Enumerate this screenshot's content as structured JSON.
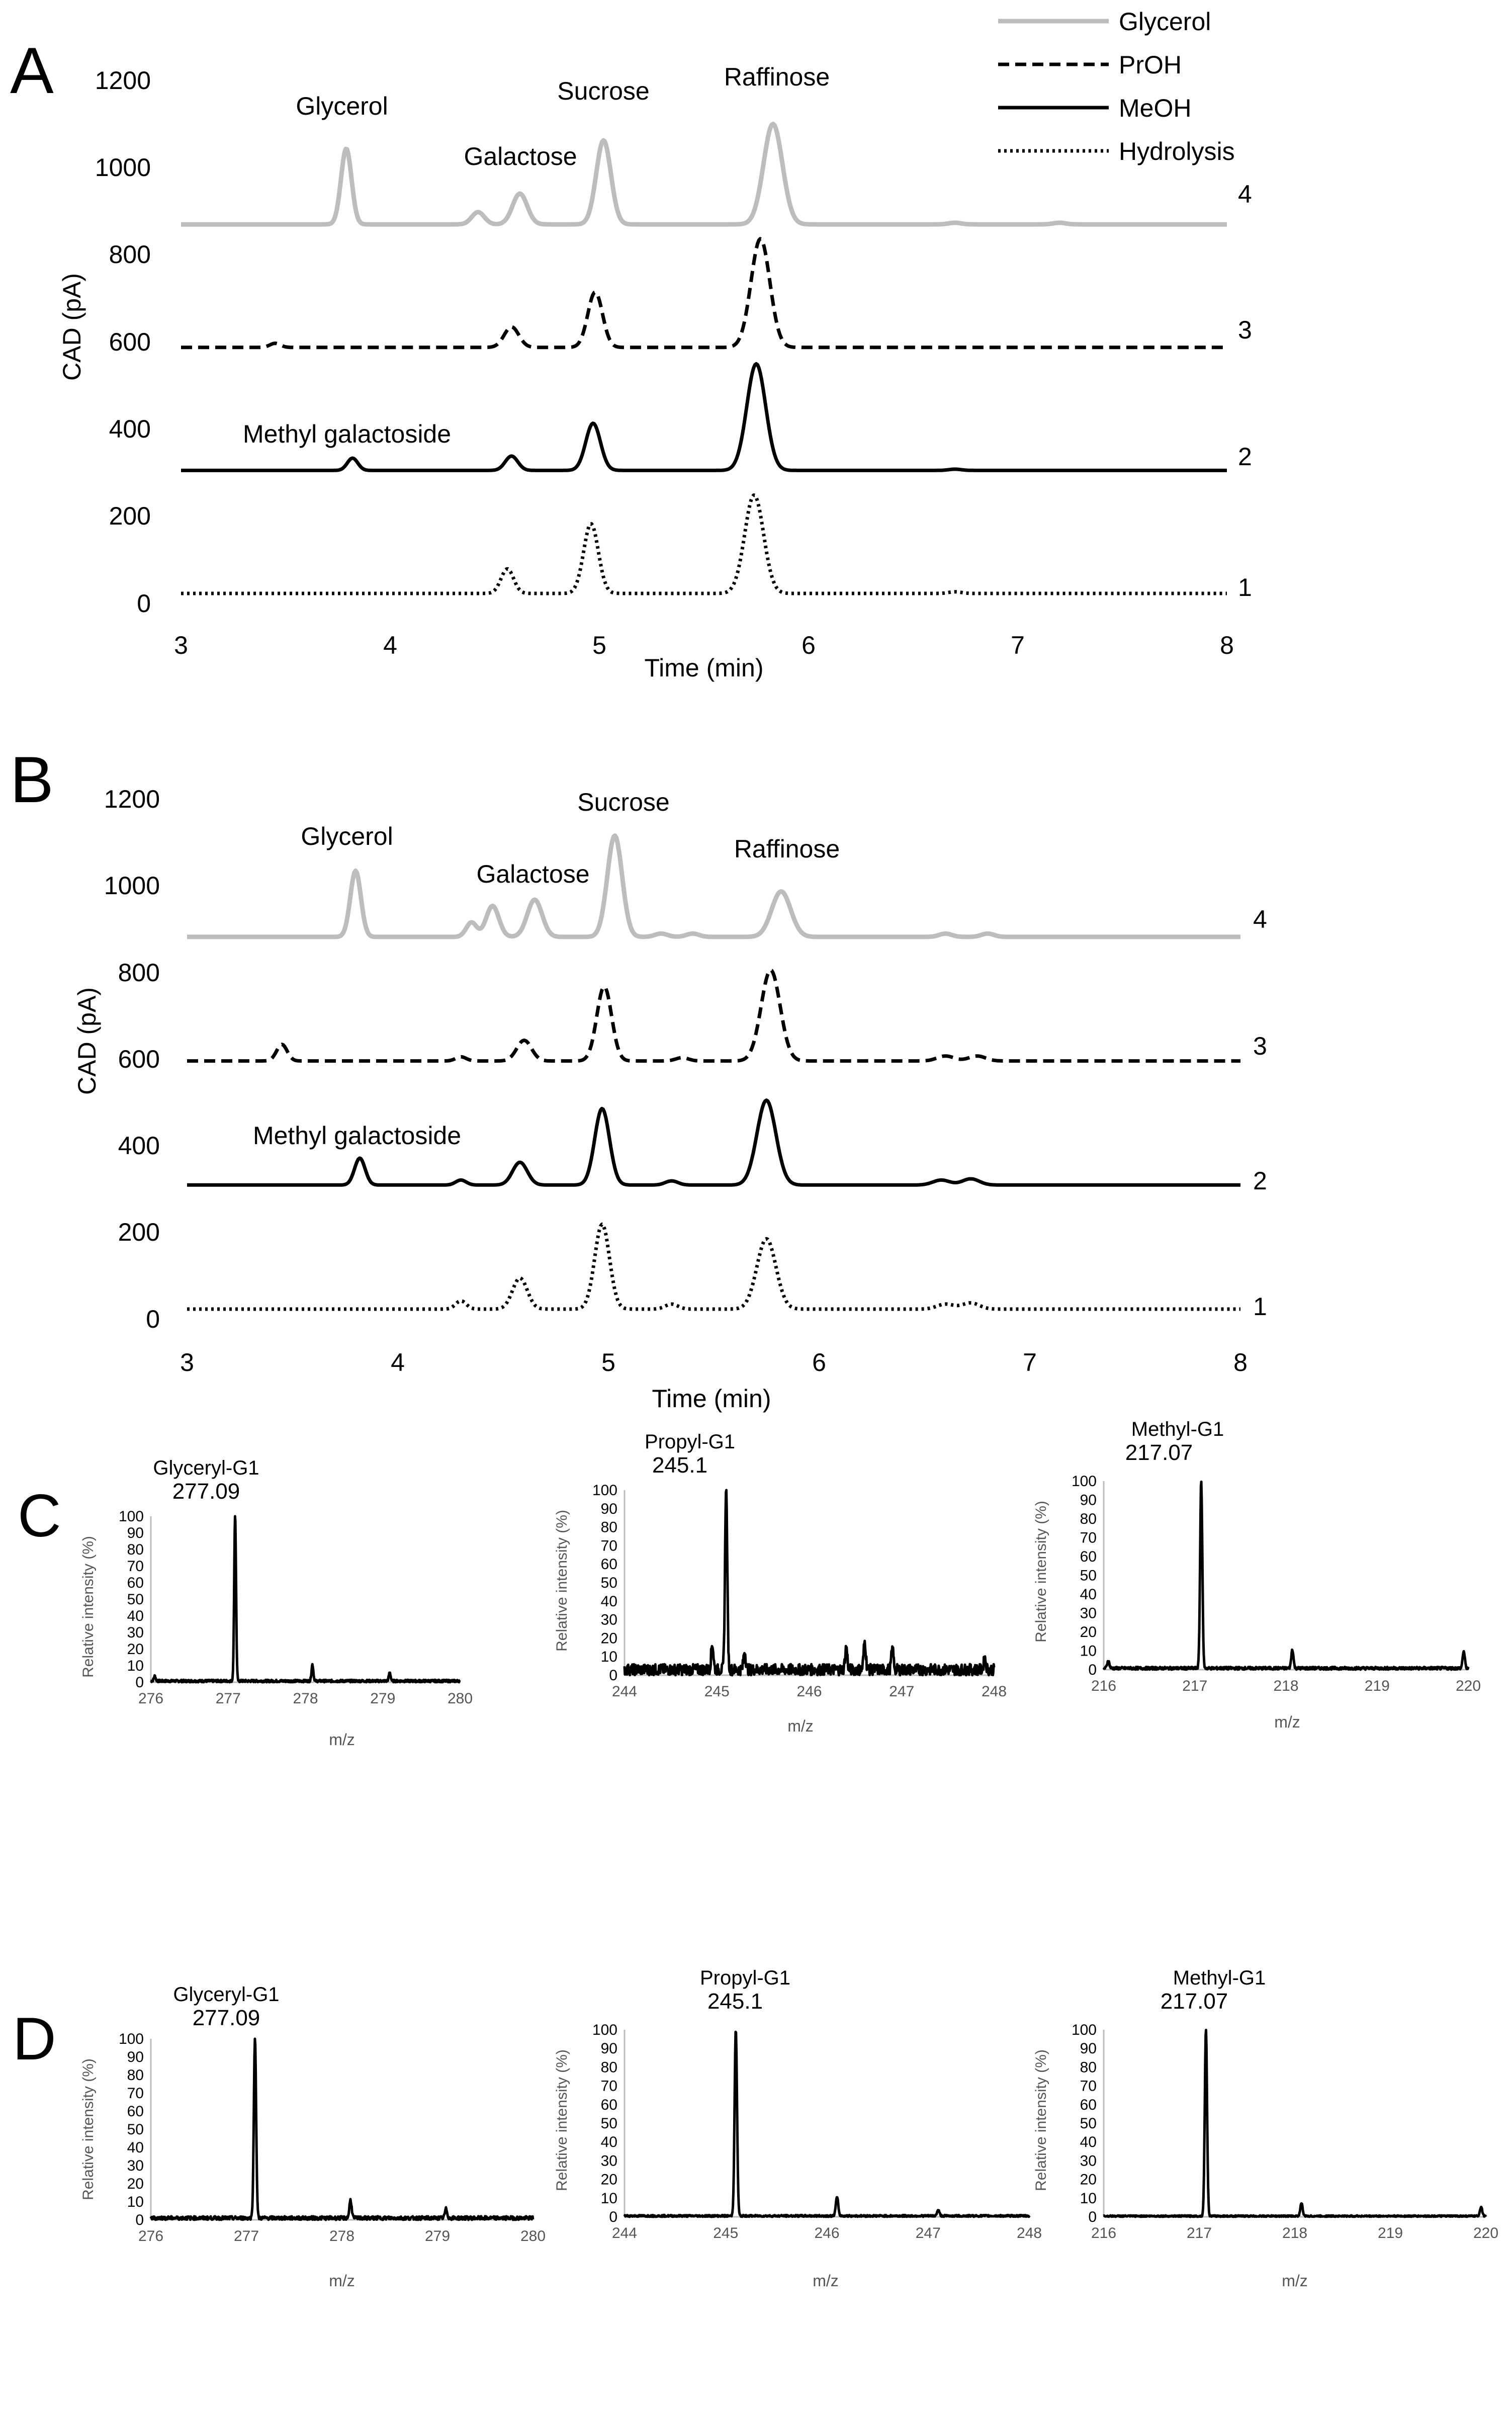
{
  "figure": {
    "panel_letters": [
      "A",
      "B",
      "C",
      "D"
    ]
  },
  "chart_data": [
    {
      "id": "A",
      "type": "line",
      "title": "",
      "xlabel": "Time (min)",
      "ylabel": "CAD (pA)",
      "xlim": [
        3,
        8
      ],
      "ylim": [
        0,
        1300
      ],
      "xticks": [
        "3",
        "4",
        "5",
        "6",
        "7",
        "8"
      ],
      "yticks": [
        "0",
        "200",
        "400",
        "600",
        "800",
        "1000",
        "1200"
      ],
      "legend": [
        "Glycerol",
        "PrOH",
        "MeOH",
        "Hydrolysis"
      ],
      "legend_position": "top-right",
      "annotations": [
        "Glycerol",
        "Galactose",
        "Sucrose",
        "Raffinose",
        "Methyl galactoside"
      ],
      "trace_numbers": [
        "4",
        "3",
        "2",
        "1"
      ],
      "series": [
        {
          "name": "Glycerol",
          "trace_label": "4",
          "style": "solid",
          "color": "#bdbdbd",
          "baseline": 900,
          "peaks": [
            [
              3.79,
              185,
              0.025
            ],
            [
              4.42,
              30,
              0.03
            ],
            [
              4.62,
              75,
              0.035
            ],
            [
              5.02,
              205,
              0.035
            ],
            [
              5.83,
              245,
              0.045
            ],
            [
              6.7,
              4,
              0.03
            ],
            [
              7.2,
              4,
              0.03
            ]
          ]
        },
        {
          "name": "PrOH",
          "trace_label": "3",
          "style": "dashed",
          "color": "#000000",
          "baseline": 600,
          "peaks": [
            [
              3.45,
              10,
              0.025
            ],
            [
              4.58,
              50,
              0.035
            ],
            [
              4.98,
              135,
              0.035
            ],
            [
              5.77,
              265,
              0.045
            ]
          ]
        },
        {
          "name": "MeOH",
          "trace_label": "2",
          "style": "solid",
          "color": "#000000",
          "baseline": 300,
          "peaks": [
            [
              3.82,
              30,
              0.025
            ],
            [
              4.58,
              35,
              0.03
            ],
            [
              4.97,
              115,
              0.035
            ],
            [
              5.75,
              260,
              0.045
            ],
            [
              6.7,
              3,
              0.03
            ]
          ]
        },
        {
          "name": "Hydrolysis",
          "trace_label": "1",
          "style": "dotted",
          "color": "#000000",
          "baseline": 0,
          "peaks": [
            [
              4.56,
              60,
              0.03
            ],
            [
              4.96,
              170,
              0.035
            ],
            [
              5.74,
              240,
              0.045
            ],
            [
              6.7,
              4,
              0.03
            ]
          ]
        }
      ]
    },
    {
      "id": "B",
      "type": "line",
      "title": "",
      "xlabel": "Time (min)",
      "ylabel": "CAD (pA)",
      "xlim": [
        3,
        8
      ],
      "ylim": [
        0,
        1300
      ],
      "xticks": [
        "3",
        "4",
        "5",
        "6",
        "7",
        "8"
      ],
      "yticks": [
        "0",
        "200",
        "400",
        "600",
        "800",
        "1000",
        "1200"
      ],
      "annotations": [
        "Glycerol",
        "Galactose",
        "Sucrose",
        "Raffinose",
        "Methyl galactoside"
      ],
      "trace_numbers": [
        "4",
        "3",
        "2",
        "1"
      ],
      "series": [
        {
          "name": "Glycerol",
          "trace_label": "4",
          "style": "solid",
          "color": "#bdbdbd",
          "baseline": 900,
          "peaks": [
            [
              3.8,
              160,
              0.025
            ],
            [
              4.35,
              35,
              0.025
            ],
            [
              4.45,
              75,
              0.03
            ],
            [
              4.65,
              90,
              0.035
            ],
            [
              5.03,
              245,
              0.035
            ],
            [
              5.25,
              8,
              0.03
            ],
            [
              5.4,
              8,
              0.03
            ],
            [
              5.82,
              110,
              0.045
            ],
            [
              6.6,
              8,
              0.03
            ],
            [
              6.8,
              8,
              0.03
            ]
          ]
        },
        {
          "name": "PrOH",
          "trace_label": "3",
          "style": "dashed",
          "color": "#000000",
          "baseline": 600,
          "peaks": [
            [
              3.45,
              40,
              0.025
            ],
            [
              4.3,
              10,
              0.025
            ],
            [
              4.6,
              50,
              0.035
            ],
            [
              4.98,
              180,
              0.035
            ],
            [
              5.35,
              8,
              0.03
            ],
            [
              5.77,
              220,
              0.045
            ],
            [
              6.6,
              12,
              0.04
            ],
            [
              6.75,
              12,
              0.04
            ]
          ]
        },
        {
          "name": "MeOH",
          "trace_label": "2",
          "style": "solid",
          "color": "#000000",
          "baseline": 300,
          "peaks": [
            [
              3.82,
              65,
              0.025
            ],
            [
              4.3,
              12,
              0.025
            ],
            [
              4.58,
              55,
              0.035
            ],
            [
              4.97,
              185,
              0.035
            ],
            [
              5.3,
              10,
              0.03
            ],
            [
              5.75,
              205,
              0.045
            ],
            [
              6.58,
              12,
              0.04
            ],
            [
              6.72,
              15,
              0.04
            ]
          ]
        },
        {
          "name": "Hydrolysis",
          "trace_label": "1",
          "style": "dotted",
          "color": "#000000",
          "baseline": 0,
          "peaks": [
            [
              4.3,
              20,
              0.025
            ],
            [
              4.58,
              75,
              0.035
            ],
            [
              4.97,
              205,
              0.035
            ],
            [
              5.3,
              12,
              0.03
            ],
            [
              5.75,
              170,
              0.045
            ],
            [
              6.6,
              12,
              0.04
            ],
            [
              6.72,
              15,
              0.04
            ]
          ]
        }
      ]
    },
    {
      "id": "C",
      "type": "line",
      "subtype": "mass-spectra",
      "spectra": [
        {
          "title": "Glyceryl-G1",
          "peak_label": "277.09",
          "xlabel": "m/z",
          "ylabel": "Relative intensity (%)",
          "xlim": [
            276,
            280
          ],
          "ylim": [
            0,
            100
          ],
          "xticks": [
            "276",
            "277",
            "278",
            "279",
            "280"
          ],
          "yticks": [
            "0",
            "10",
            "20",
            "30",
            "40",
            "50",
            "60",
            "70",
            "80",
            "90",
            "100"
          ],
          "noise": 1.5,
          "peaks": [
            [
              277.09,
              100
            ],
            [
              278.09,
              10
            ],
            [
              279.09,
              5
            ],
            [
              276.05,
              3
            ]
          ]
        },
        {
          "title": "Propyl-G1",
          "peak_label": "245.1",
          "xlabel": "m/z",
          "ylabel": "Relative intensity (%)",
          "xlim": [
            244,
            248
          ],
          "ylim": [
            0,
            100
          ],
          "xticks": [
            "244",
            "245",
            "246",
            "247",
            "248"
          ],
          "yticks": [
            "0",
            "10",
            "20",
            "30",
            "40",
            "50",
            "60",
            "70",
            "80",
            "90",
            "100"
          ],
          "noise": 6,
          "peaks": [
            [
              245.1,
              100
            ],
            [
              244.95,
              14
            ],
            [
              245.3,
              10
            ],
            [
              246.4,
              12
            ],
            [
              246.6,
              15
            ],
            [
              246.9,
              11
            ],
            [
              247.9,
              6
            ]
          ]
        },
        {
          "title": "Methyl-G1",
          "peak_label": "217.07",
          "xlabel": "m/z",
          "ylabel": "Relative intensity (%)",
          "xlim": [
            216,
            220
          ],
          "ylim": [
            0,
            100
          ],
          "xticks": [
            "216",
            "217",
            "218",
            "219",
            "220"
          ],
          "yticks": [
            "0",
            "10",
            "20",
            "30",
            "40",
            "50",
            "60",
            "70",
            "80",
            "90",
            "100"
          ],
          "noise": 1.5,
          "peaks": [
            [
              217.07,
              100
            ],
            [
              218.07,
              10
            ],
            [
              219.95,
              9
            ],
            [
              216.05,
              4
            ]
          ]
        }
      ]
    },
    {
      "id": "D",
      "type": "line",
      "subtype": "mass-spectra",
      "spectra": [
        {
          "title": "Glyceryl-G1",
          "peak_label": "277.09",
          "xlabel": "m/z",
          "ylabel": "Relative intensity (%)",
          "xlim": [
            276,
            280
          ],
          "ylim": [
            0,
            100
          ],
          "xticks": [
            "276",
            "277",
            "278",
            "279",
            "280"
          ],
          "yticks": [
            "0",
            "10",
            "20",
            "30",
            "40",
            "50",
            "60",
            "70",
            "80",
            "90",
            "100"
          ],
          "noise": 2,
          "peaks": [
            [
              277.09,
              100
            ],
            [
              278.09,
              10
            ],
            [
              279.09,
              5
            ]
          ]
        },
        {
          "title": "Propyl-G1",
          "peak_label": "245.1",
          "xlabel": "m/z",
          "ylabel": "Relative intensity (%)",
          "xlim": [
            244,
            248
          ],
          "ylim": [
            0,
            100
          ],
          "xticks": [
            "244",
            "245",
            "246",
            "247",
            "248"
          ],
          "yticks": [
            "0",
            "10",
            "20",
            "30",
            "40",
            "50",
            "60",
            "70",
            "80",
            "90",
            "100"
          ],
          "noise": 1,
          "peaks": [
            [
              245.1,
              100
            ],
            [
              246.1,
              10
            ],
            [
              247.1,
              3
            ]
          ]
        },
        {
          "title": "Methyl-G1",
          "peak_label": "217.07",
          "xlabel": "m/z",
          "ylabel": "Relative intensity (%)",
          "xlim": [
            216,
            220
          ],
          "ylim": [
            0,
            100
          ],
          "xticks": [
            "216",
            "217",
            "218",
            "219",
            "220"
          ],
          "yticks": [
            "0",
            "10",
            "20",
            "30",
            "40",
            "50",
            "60",
            "70",
            "80",
            "90",
            "100"
          ],
          "noise": 0.8,
          "peaks": [
            [
              217.07,
              100
            ],
            [
              218.07,
              7
            ],
            [
              219.95,
              5
            ]
          ]
        }
      ]
    }
  ]
}
